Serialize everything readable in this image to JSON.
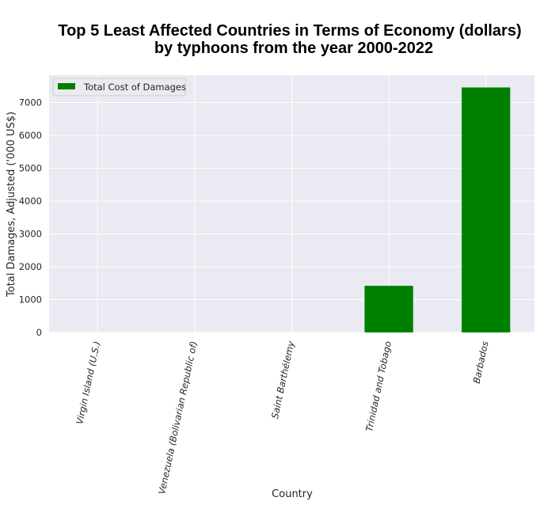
{
  "chart_data": {
    "type": "bar",
    "title_lines": [
      "Top 5 Least Affected Countries in Terms of Economy (dollars)",
      "by typhoons from the year 2000-2022"
    ],
    "xlabel": "Country",
    "ylabel": "Total Damages, Adjusted ('000 US$)",
    "categories": [
      "Virgin Island (U.S.)",
      "Venezuela (Bolivarian Republic of)",
      "Saint Barthélemy",
      "Trinidad and Tobago",
      "Barbados"
    ],
    "series": [
      {
        "name": "Total Cost of Damages",
        "values": [
          0,
          0,
          0,
          1420,
          7460
        ],
        "color": "#008000"
      }
    ],
    "yticks": [
      0,
      1000,
      2000,
      3000,
      4000,
      5000,
      6000,
      7000
    ],
    "ylim": [
      0,
      7833
    ],
    "grid": true,
    "legend_position": "top-left",
    "background": "#eaeaf2"
  }
}
